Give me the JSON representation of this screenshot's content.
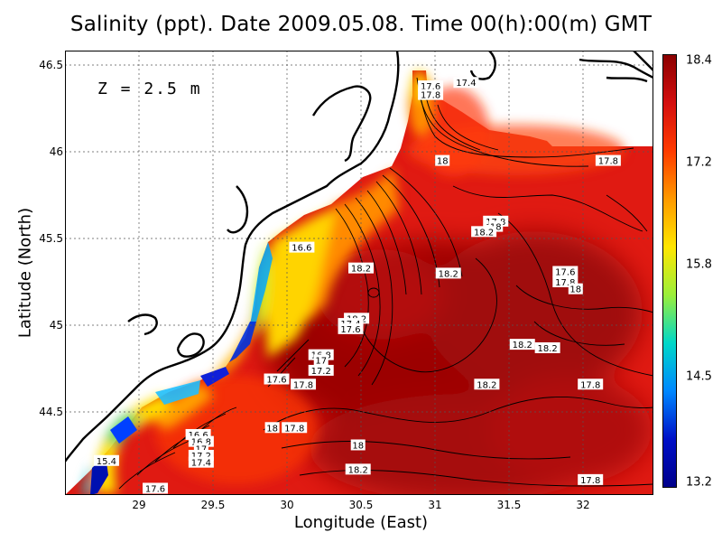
{
  "title": "Salinity (ppt). Date 2009.05.08. Time 00(h):00(m) GMT",
  "depth_label": "Z = 2.5 m",
  "xlabel": "Longitude (East)",
  "ylabel": "Latitude (North)",
  "x_ticks": [
    "29",
    "29.5",
    "30",
    "30.5",
    "31",
    "31.5",
    "32"
  ],
  "y_ticks": [
    "46.5",
    "46",
    "45.5",
    "45",
    "44.5"
  ],
  "colorbar": {
    "ticks": [
      "18.4",
      "17.2",
      "15.8",
      "14.5",
      "13.2"
    ],
    "colors": [
      "#8b0000",
      "#d40f0f",
      "#ff3b00",
      "#ff9a00",
      "#ffe600",
      "#9bef3a",
      "#00d8c8",
      "#0088ff",
      "#0010c8",
      "#00008b"
    ]
  },
  "chart_data": {
    "type": "heatmap",
    "title": "Salinity (ppt). Date 2009.05.08. Time 00(h):00(m) GMT",
    "xlabel": "Longitude (East)",
    "ylabel": "Latitude (North)",
    "xlim": [
      28.6,
      32.5
    ],
    "ylim": [
      44.46,
      46.62
    ],
    "value_range": [
      13.2,
      18.4
    ],
    "grid": true,
    "contour_labels": [
      {
        "text": "17.6",
        "lon": 30.97,
        "lat": 46.38
      },
      {
        "text": "17.4",
        "lon": 31.21,
        "lat": 46.4
      },
      {
        "text": "17.8",
        "lon": 30.97,
        "lat": 46.33
      },
      {
        "text": "18",
        "lon": 31.05,
        "lat": 45.95
      },
      {
        "text": "17.8",
        "lon": 32.17,
        "lat": 45.95
      },
      {
        "text": "17.8",
        "lon": 31.41,
        "lat": 45.6
      },
      {
        "text": "18",
        "lon": 31.41,
        "lat": 45.57
      },
      {
        "text": "18.2",
        "lon": 31.33,
        "lat": 45.54
      },
      {
        "text": "16.6",
        "lon": 30.1,
        "lat": 45.45
      },
      {
        "text": "18.2",
        "lon": 30.5,
        "lat": 45.33
      },
      {
        "text": "18.2",
        "lon": 31.09,
        "lat": 45.3
      },
      {
        "text": "17.6",
        "lon": 31.88,
        "lat": 45.31
      },
      {
        "text": "17.8",
        "lon": 31.88,
        "lat": 45.25
      },
      {
        "text": "18",
        "lon": 31.95,
        "lat": 45.21
      },
      {
        "text": "18.2",
        "lon": 30.47,
        "lat": 45.04
      },
      {
        "text": "17.4",
        "lon": 30.43,
        "lat": 45.01
      },
      {
        "text": "17.6",
        "lon": 30.43,
        "lat": 44.98
      },
      {
        "text": "18.2",
        "lon": 31.59,
        "lat": 44.89
      },
      {
        "text": "18.2",
        "lon": 31.76,
        "lat": 44.87
      },
      {
        "text": "16.8",
        "lon": 30.23,
        "lat": 44.83
      },
      {
        "text": "17",
        "lon": 30.23,
        "lat": 44.8
      },
      {
        "text": "17.2",
        "lon": 30.23,
        "lat": 44.74
      },
      {
        "text": "17.6",
        "lon": 29.93,
        "lat": 44.69
      },
      {
        "text": "17.8",
        "lon": 30.11,
        "lat": 44.66
      },
      {
        "text": "18.2",
        "lon": 31.35,
        "lat": 44.66
      },
      {
        "text": "17.8",
        "lon": 32.05,
        "lat": 44.66
      },
      {
        "text": "18",
        "lon": 29.9,
        "lat": 44.41
      },
      {
        "text": "17.8",
        "lon": 30.05,
        "lat": 44.41
      },
      {
        "text": "18",
        "lon": 30.48,
        "lat": 44.31
      },
      {
        "text": "18.2",
        "lon": 30.48,
        "lat": 44.17
      },
      {
        "text": "17.8",
        "lon": 32.05,
        "lat": 44.11
      },
      {
        "text": "17.6",
        "lon": 29.11,
        "lat": 44.06
      },
      {
        "text": "15.4",
        "lon": 28.78,
        "lat": 44.22
      },
      {
        "text": "16.6",
        "lon": 29.4,
        "lat": 44.37
      },
      {
        "text": "16.8",
        "lon": 29.42,
        "lat": 44.33
      },
      {
        "text": "17",
        "lon": 29.42,
        "lat": 44.29
      },
      {
        "text": "17.2",
        "lon": 29.42,
        "lat": 44.25
      },
      {
        "text": "17.4",
        "lon": 29.42,
        "lat": 44.21
      }
    ]
  }
}
